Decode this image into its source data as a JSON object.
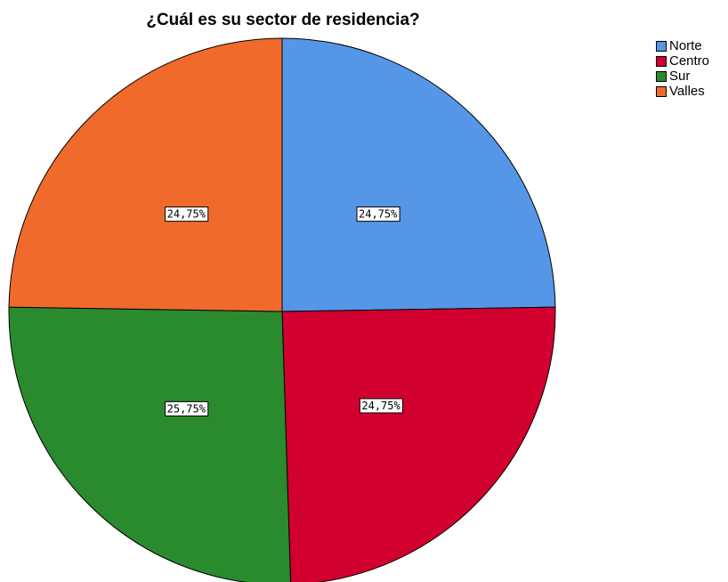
{
  "chart_data": {
    "type": "pie",
    "title": "¿Cuál es su sector de residencia?",
    "categories": [
      "Norte",
      "Centro",
      "Sur",
      "Valles"
    ],
    "values": [
      24.75,
      24.75,
      25.75,
      24.75
    ],
    "labels": [
      "24,75%",
      "24,75%",
      "25,75%",
      "24,75%"
    ],
    "colors": [
      "#5596e6",
      "#d1002e",
      "#2a8a2e",
      "#f06a2c"
    ],
    "start_angle_deg": 0,
    "direction": "clockwise",
    "legend_position": "top-right"
  }
}
